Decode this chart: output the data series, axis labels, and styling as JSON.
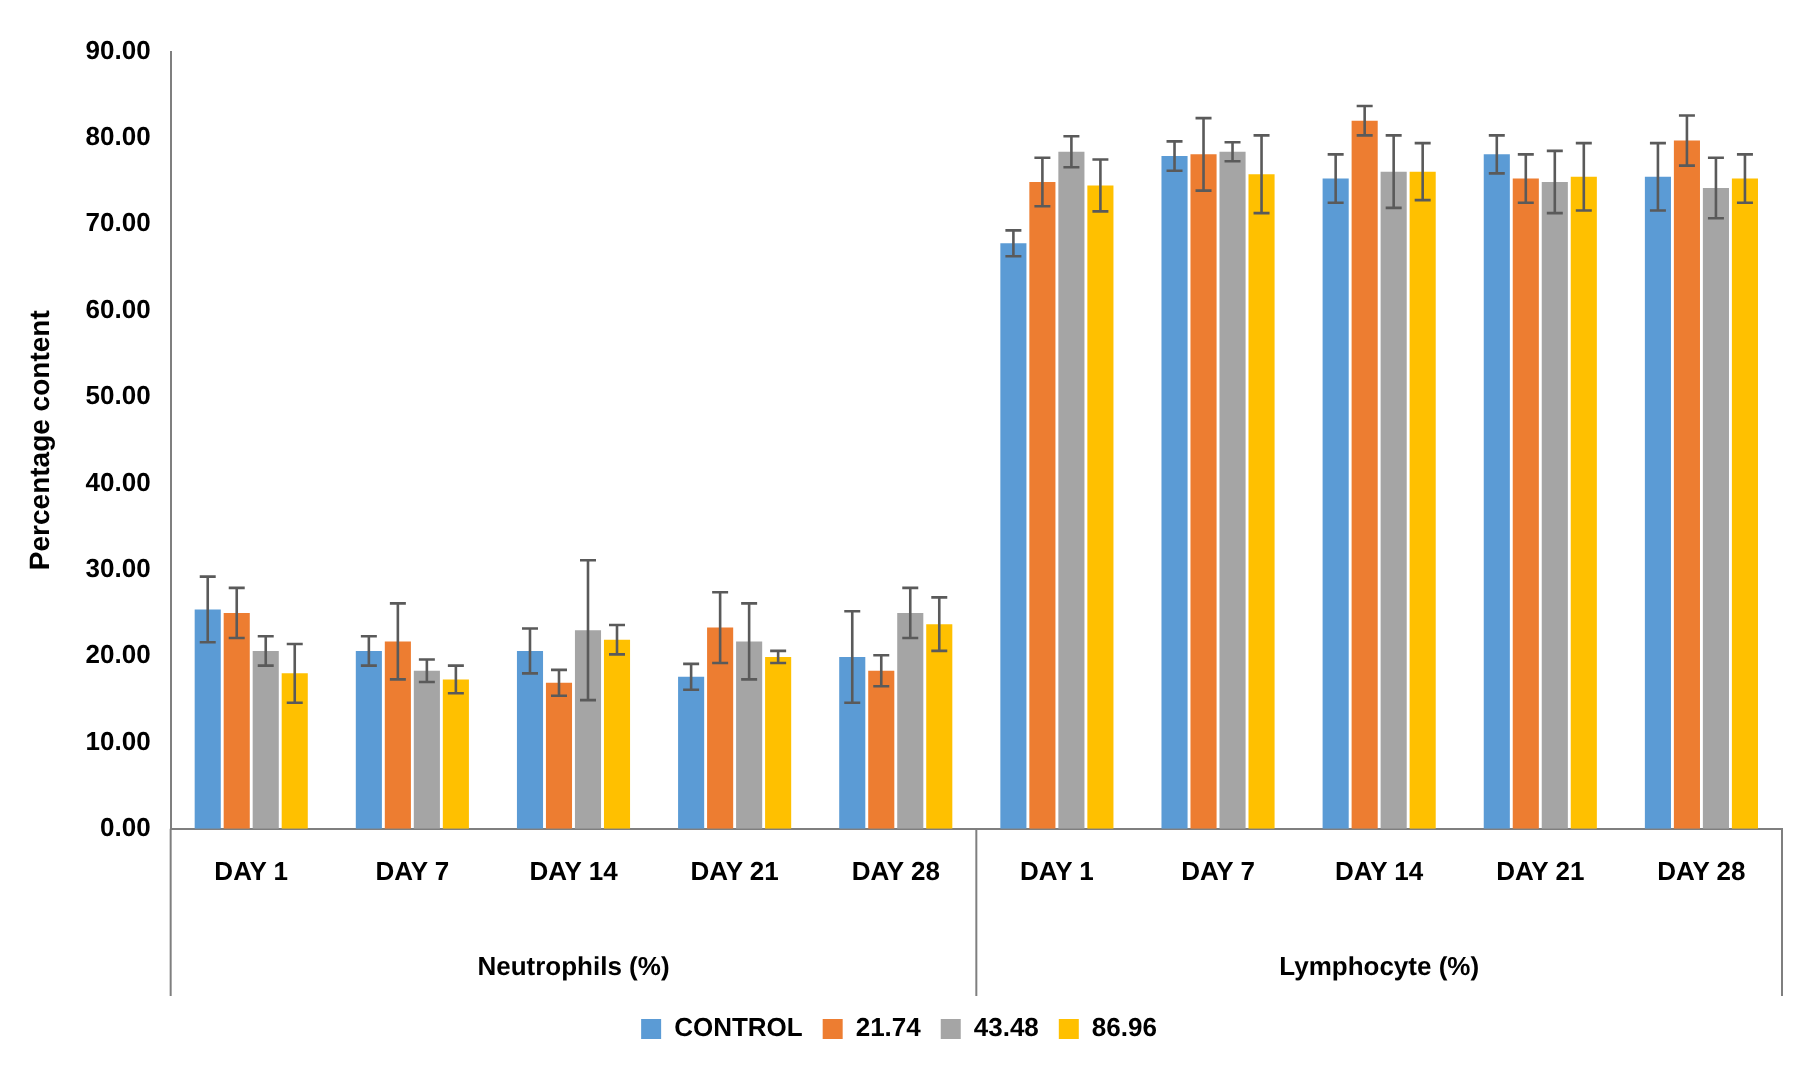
{
  "chart_data": {
    "type": "bar",
    "ylabel": "Percentage content",
    "categories": [
      "DAY 1",
      "DAY 7",
      "DAY 14",
      "DAY 21",
      "DAY 28",
      "DAY 1",
      "DAY 7",
      "DAY 14",
      "DAY 21",
      "DAY 28"
    ],
    "annotations": [
      "Neutrophils (%)",
      "Lymphocyte (%)"
    ],
    "series": [
      {
        "name": "CONTROL",
        "color": "#5b9bd5",
        "values": [
          25.4,
          20.6,
          20.6,
          17.6,
          19.9,
          67.8,
          77.9,
          75.3,
          78.1,
          75.5
        ],
        "errors": [
          3.8,
          1.7,
          2.6,
          1.5,
          5.3,
          1.5,
          1.7,
          2.8,
          2.2,
          3.9
        ]
      },
      {
        "name": "21.74",
        "color": "#ed7d31",
        "values": [
          25.0,
          21.7,
          16.9,
          23.3,
          18.3,
          74.9,
          78.1,
          82.0,
          75.3,
          79.7
        ],
        "errors": [
          2.9,
          4.4,
          1.5,
          4.1,
          1.8,
          2.8,
          4.2,
          1.7,
          2.8,
          2.9
        ]
      },
      {
        "name": "43.48",
        "color": "#a5a5a5",
        "values": [
          20.6,
          18.3,
          23.0,
          21.7,
          25.0,
          78.4,
          78.4,
          76.1,
          74.9,
          74.2
        ],
        "errors": [
          1.7,
          1.3,
          8.1,
          4.4,
          2.9,
          1.8,
          1.1,
          4.2,
          3.6,
          3.5
        ]
      },
      {
        "name": "86.96",
        "color": "#ffc000",
        "values": [
          18.0,
          17.3,
          21.9,
          19.9,
          23.7,
          74.5,
          75.8,
          76.1,
          75.5,
          75.3
        ],
        "errors": [
          3.4,
          1.6,
          1.7,
          0.7,
          3.1,
          3.0,
          4.5,
          3.3,
          3.9,
          2.8
        ]
      }
    ],
    "ylim": [
      0,
      90
    ],
    "yticks": [
      {
        "value": 0,
        "label": "0.00"
      },
      {
        "value": 10,
        "label": "10.00"
      },
      {
        "value": 20,
        "label": "20.00"
      },
      {
        "value": 30,
        "label": "30.00"
      },
      {
        "value": 40,
        "label": "40.00"
      },
      {
        "value": 50,
        "label": "50.00"
      },
      {
        "value": 60,
        "label": "60.00"
      },
      {
        "value": 70,
        "label": "70.00"
      },
      {
        "value": 80,
        "label": "80.00"
      },
      {
        "value": 90,
        "label": "90.00"
      }
    ],
    "grid": false,
    "legend": "bottom"
  }
}
